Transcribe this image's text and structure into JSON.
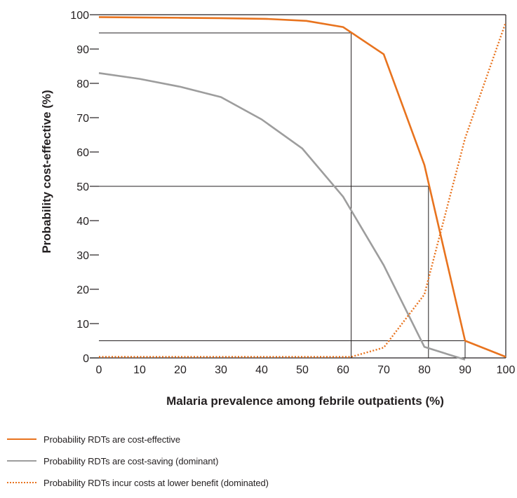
{
  "chart_data": {
    "type": "line",
    "xlabel": "Malaria prevalence among febrile outpatients (%)",
    "ylabel": "Probability cost-effective (%)",
    "xlim": [
      0,
      100
    ],
    "ylim": [
      0,
      100
    ],
    "x_ticks": [
      "0",
      "10",
      "20",
      "30",
      "40",
      "50",
      "60",
      "70",
      "80",
      "90",
      "100"
    ],
    "y_ticks": [
      "0",
      "10",
      "20",
      "30",
      "40",
      "50",
      "60",
      "70",
      "80",
      "90",
      "100"
    ],
    "grid": false,
    "series": [
      {
        "name": "Probability RDTs are cost-effective",
        "style": "solid",
        "color": "#e8731e",
        "x": [
          0,
          10,
          20,
          30,
          41,
          51,
          60,
          70,
          80,
          90,
          100
        ],
        "y": [
          99.3,
          99.2,
          99.1,
          99.0,
          98.8,
          98.2,
          96.4,
          88.5,
          56.2,
          5.0,
          0.3
        ]
      },
      {
        "name": "Probability RDTs are cost-saving (dominant)",
        "style": "solid",
        "color": "#9d9d9d",
        "x": [
          0,
          10,
          20,
          30,
          40,
          50,
          60,
          70,
          80,
          90
        ],
        "y": [
          83.0,
          81.3,
          79.0,
          76.0,
          69.5,
          61.0,
          47.0,
          27.0,
          3.2,
          -0.5
        ]
      },
      {
        "name": "Probability RDTs incur costs at lower benefit (dominated)",
        "style": "dotted",
        "color": "#e8731e",
        "x": [
          0,
          10,
          20,
          30,
          40,
          50,
          60,
          62,
          70,
          80,
          90,
          100
        ],
        "y": [
          0.3,
          0.3,
          0.3,
          0.3,
          0.3,
          0.3,
          0.3,
          0.3,
          3.0,
          18.5,
          64.0,
          97.8
        ]
      }
    ],
    "reference_lines": [
      {
        "x": 62,
        "y": 94.7
      },
      {
        "x": 81,
        "y": 50
      },
      {
        "x": 90,
        "y": 5
      }
    ],
    "legend_position": "bottom-left"
  },
  "legend": {
    "items": [
      {
        "label": "Probability RDTs are cost-effective",
        "color": "#e8731e",
        "style": "solid"
      },
      {
        "label": "Probability RDTs are cost-saving (dominant)",
        "color": "#9d9d9d",
        "style": "solid"
      },
      {
        "label": "Probability RDTs incur costs at lower benefit (dominated)",
        "color": "#e8731e",
        "style": "dotted"
      }
    ]
  }
}
